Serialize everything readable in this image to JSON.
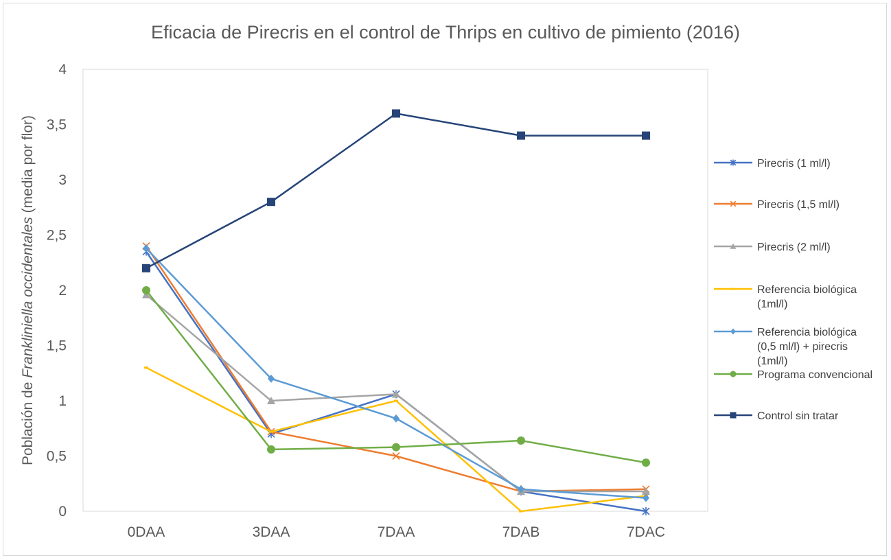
{
  "chart_data": {
    "type": "line",
    "title": "Eficacia de Pirecris en el control de Thrips en cultivo de pimiento (2016)",
    "ylabel_prefix": "Población de ",
    "ylabel_italic": "Frankliniella occidentales",
    "ylabel_suffix": " (media por flor)",
    "xlabel": "",
    "categories": [
      "0DAA",
      "3DAA",
      "7DAA",
      "7DAB",
      "7DAC"
    ],
    "ylim": [
      0,
      4
    ],
    "yticks": [
      "0",
      "0,5",
      "1",
      "1,5",
      "2",
      "2,5",
      "3",
      "3,5",
      "4"
    ],
    "grid": false,
    "legend_position": "right",
    "series": [
      {
        "name": "Pirecris (1 ml/l)",
        "legend_lines": [
          "Pirecris (1 ml/l)"
        ],
        "color": "#4472C4",
        "marker": "star",
        "values": [
          2.35,
          0.7,
          1.06,
          0.18,
          0.0
        ]
      },
      {
        "name": "Pirecris (1,5 ml/l)",
        "legend_lines": [
          "Pirecris (1,5 ml/l)"
        ],
        "color": "#ED7D31",
        "marker": "x",
        "values": [
          2.4,
          0.72,
          0.5,
          0.18,
          0.2
        ]
      },
      {
        "name": "Pirecris (2 ml/l)",
        "legend_lines": [
          "Pirecris (2 ml/l)"
        ],
        "color": "#A5A5A5",
        "marker": "triangle",
        "values": [
          1.96,
          1.0,
          1.06,
          0.18,
          0.18
        ]
      },
      {
        "name": "Referencia biológica (1ml/l)",
        "legend_lines": [
          "Referencia biológica",
          "(1ml/l)"
        ],
        "color": "#FFC000",
        "marker": "dash",
        "values": [
          1.3,
          0.72,
          1.0,
          0.0,
          0.14
        ]
      },
      {
        "name": "Referencia biológica (0,5 ml/l) + pirecris (1ml/l)",
        "legend_lines": [
          "Referencia biológica",
          "(0,5 ml/l) + pirecris",
          "(1ml/l)"
        ],
        "color": "#5B9BD5",
        "marker": "diamond",
        "values": [
          2.38,
          1.2,
          0.84,
          0.2,
          0.12
        ]
      },
      {
        "name": "Programa convencional",
        "legend_lines": [
          "Programa convencional"
        ],
        "color": "#70AD47",
        "marker": "circle",
        "values": [
          2.0,
          0.56,
          0.58,
          0.64,
          0.44
        ]
      },
      {
        "name": "Control sin tratar",
        "legend_lines": [
          "Control sin tratar"
        ],
        "color": "#264478",
        "marker": "square",
        "values": [
          2.2,
          2.8,
          3.6,
          3.4,
          3.4
        ]
      }
    ]
  }
}
